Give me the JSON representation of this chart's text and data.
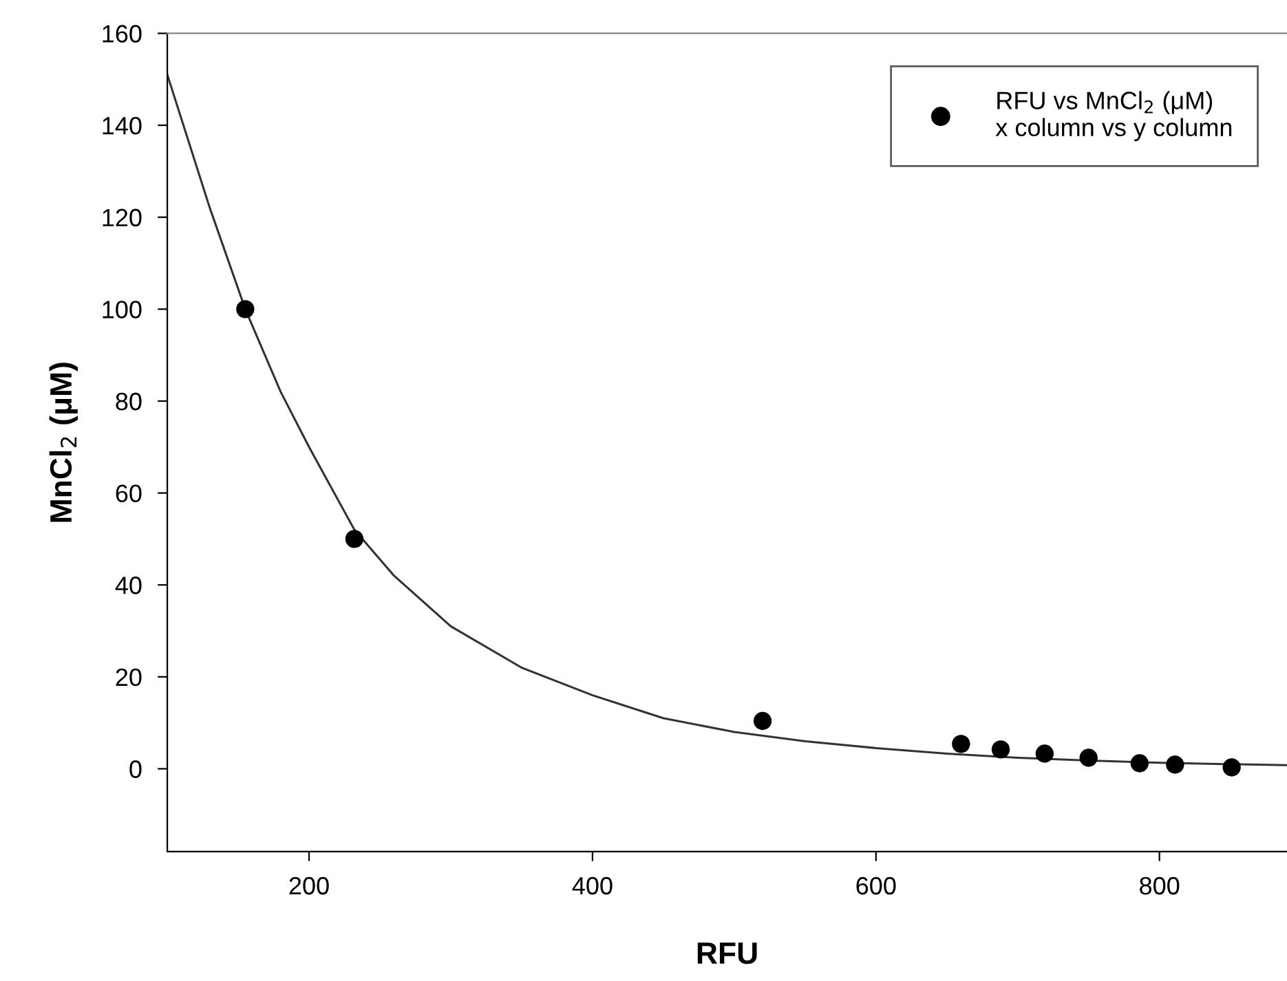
{
  "chart_data": {
    "type": "scatter",
    "xlabel": "RFU",
    "ylabel": "MnCl$_{2}$ (μM)",
    "xlim": [
      100,
      890
    ],
    "ylim": [
      -18,
      160
    ],
    "xticks": [
      200,
      400,
      600,
      800
    ],
    "yticks": [
      0,
      20,
      40,
      60,
      80,
      100,
      120,
      140,
      160
    ],
    "grid": false,
    "legend": "top right",
    "marker": "circle",
    "series": [
      {
        "name": "RFU vs MnCl$_{2}$ (μM)\nx column vs y column",
        "color": "#000000",
        "x": [
          155,
          232,
          520,
          660,
          688,
          719,
          750,
          786,
          811,
          851
        ],
        "values": [
          100,
          50,
          10.4,
          5.4,
          4.2,
          3.3,
          2.4,
          1.2,
          0.9,
          0.3
        ]
      },
      {
        "type": "line",
        "color": "#333333",
        "line_style": "solid",
        "marker": "none",
        "x": [
          100,
          130,
          155,
          180,
          200,
          232,
          260,
          300,
          350,
          400,
          450,
          500,
          550,
          600,
          650,
          700,
          750,
          800,
          850,
          890
        ],
        "values": [
          151,
          122,
          100,
          82,
          70,
          52,
          42,
          31,
          22,
          16,
          11,
          8,
          6,
          4.5,
          3.3,
          2.4,
          1.8,
          1.3,
          1.0,
          0.8
        ]
      }
    ]
  }
}
